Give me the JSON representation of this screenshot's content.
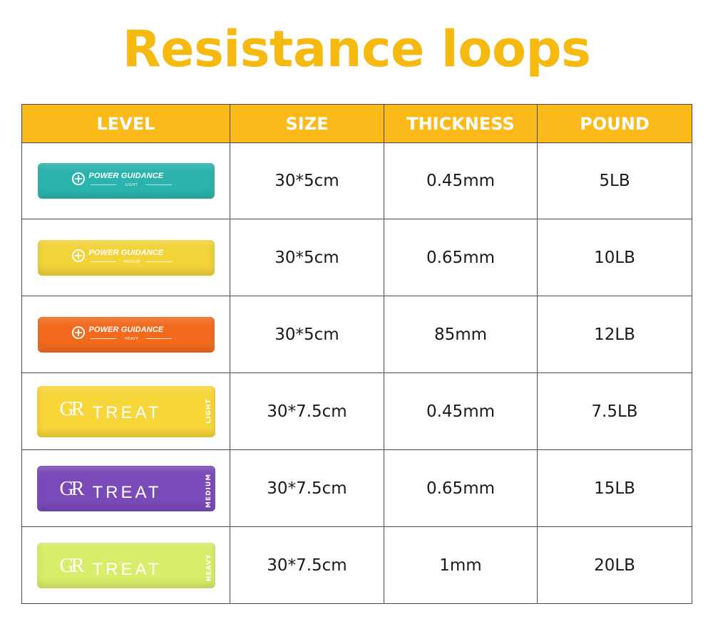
{
  "title": "Resistance loops",
  "colors": {
    "title": "#f5b90f",
    "header_bg": "#fbb91a",
    "header_text": "#ffffff",
    "border": "#4a4a4a"
  },
  "headers": [
    "LEVEL",
    "SIZE",
    "THICKNESS",
    "POUND"
  ],
  "rows": [
    {
      "band": {
        "brand": "POWER GUIDANCE",
        "level": "LIGHT",
        "color": "#2bb3ad",
        "style": "power-guidance"
      },
      "size": "30*5cm",
      "thickness": "0.45mm",
      "pound": "5LB"
    },
    {
      "band": {
        "brand": "POWER GUIDANCE",
        "level": "MEDIUM",
        "color": "#f2d33a",
        "style": "power-guidance"
      },
      "size": "30*5cm",
      "thickness": "0.65mm",
      "pound": "10LB"
    },
    {
      "band": {
        "brand": "POWER GUIDANCE",
        "level": "HEAVY",
        "color": "#f26a1e",
        "style": "power-guidance"
      },
      "size": "30*5cm",
      "thickness": "85mm",
      "pound": "12LB"
    },
    {
      "band": {
        "brand": "TREAT",
        "level": "LIGHT",
        "color": "#f7d63a",
        "style": "gr-treat"
      },
      "size": "30*7.5cm",
      "thickness": "0.45mm",
      "pound": "7.5LB"
    },
    {
      "band": {
        "brand": "TREAT",
        "level": "MEDIUM",
        "color": "#7a4ab8",
        "style": "gr-treat"
      },
      "size": "30*7.5cm",
      "thickness": "0.65mm",
      "pound": "15LB"
    },
    {
      "band": {
        "brand": "TREAT",
        "level": "HEAVY",
        "color": "#d9ed6a",
        "style": "gr-treat"
      },
      "size": "30*7.5cm",
      "thickness": "1mm",
      "pound": "20LB"
    }
  ]
}
